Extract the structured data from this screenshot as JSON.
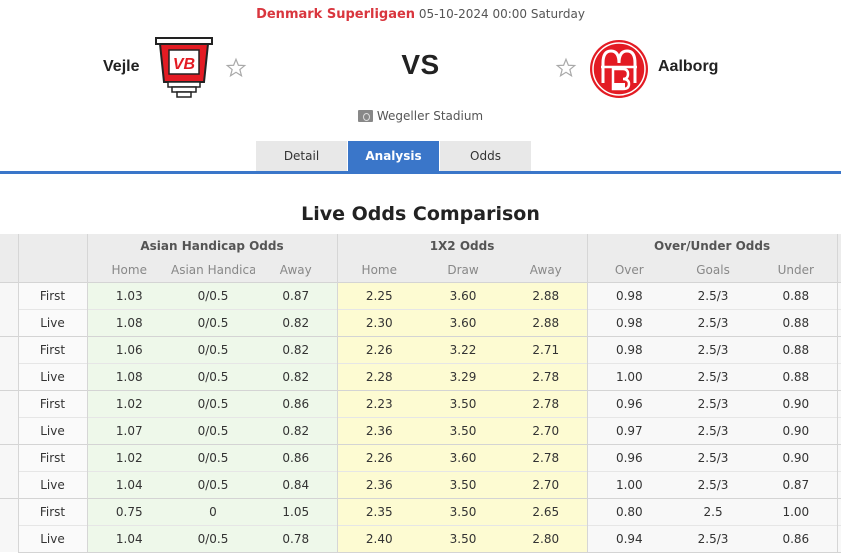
{
  "header": {
    "league": "Denmark Superligaen",
    "datetime": "05-10-2024 00:00 Saturday",
    "vs_label": "VS",
    "stadium": "Wegeller Stadium",
    "stadium_icon": "stadium-icon"
  },
  "home_team": {
    "name": "Vejle",
    "logo": "vejle-crest",
    "favorite_icon": "star-outline-icon"
  },
  "away_team": {
    "name": "Aalborg",
    "logo": "aab-crest",
    "favorite_icon": "star-outline-icon"
  },
  "tabs": [
    {
      "label": "Detail",
      "active": false
    },
    {
      "label": "Analysis",
      "active": true
    },
    {
      "label": "Odds",
      "active": false
    }
  ],
  "colors": {
    "accent": "#3a76c9",
    "league": "#d9363e",
    "ah_bg": "#eef8ea",
    "x12_bg": "#fdfbd2",
    "header_bg": "#ececec"
  },
  "section_title": "Live Odds Comparison",
  "table": {
    "groups": [
      "Asian Handicap Odds",
      "1X2 Odds",
      "Over/Under Odds"
    ],
    "subheaders": {
      "ah": [
        "Home",
        "Asian Handicap",
        "Away"
      ],
      "x12": [
        "Home",
        "Draw",
        "Away"
      ],
      "ou": [
        "Over",
        "Goals",
        "Under"
      ]
    },
    "rows": [
      {
        "type": "First",
        "ah": [
          "1.03",
          "0/0.5",
          "0.87"
        ],
        "x12": [
          "2.25",
          "3.60",
          "2.88"
        ],
        "ou": [
          "0.98",
          "2.5/3",
          "0.88"
        ]
      },
      {
        "type": "Live",
        "ah": [
          "1.08",
          "0/0.5",
          "0.82"
        ],
        "x12": [
          "2.30",
          "3.60",
          "2.88"
        ],
        "ou": [
          "0.98",
          "2.5/3",
          "0.88"
        ]
      },
      {
        "type": "First",
        "ah": [
          "1.06",
          "0/0.5",
          "0.82"
        ],
        "x12": [
          "2.26",
          "3.22",
          "2.71"
        ],
        "ou": [
          "0.98",
          "2.5/3",
          "0.88"
        ]
      },
      {
        "type": "Live",
        "ah": [
          "1.08",
          "0/0.5",
          "0.82"
        ],
        "x12": [
          "2.28",
          "3.29",
          "2.78"
        ],
        "ou": [
          "1.00",
          "2.5/3",
          "0.88"
        ]
      },
      {
        "type": "First",
        "ah": [
          "1.02",
          "0/0.5",
          "0.86"
        ],
        "x12": [
          "2.23",
          "3.50",
          "2.78"
        ],
        "ou": [
          "0.96",
          "2.5/3",
          "0.90"
        ]
      },
      {
        "type": "Live",
        "ah": [
          "1.07",
          "0/0.5",
          "0.82"
        ],
        "x12": [
          "2.36",
          "3.50",
          "2.70"
        ],
        "ou": [
          "0.97",
          "2.5/3",
          "0.90"
        ]
      },
      {
        "type": "First",
        "ah": [
          "1.02",
          "0/0.5",
          "0.86"
        ],
        "x12": [
          "2.26",
          "3.60",
          "2.78"
        ],
        "ou": [
          "0.96",
          "2.5/3",
          "0.90"
        ]
      },
      {
        "type": "Live",
        "ah": [
          "1.04",
          "0/0.5",
          "0.84"
        ],
        "x12": [
          "2.36",
          "3.50",
          "2.70"
        ],
        "ou": [
          "1.00",
          "2.5/3",
          "0.87"
        ]
      },
      {
        "type": "First",
        "ah": [
          "0.75",
          "0",
          "1.05"
        ],
        "x12": [
          "2.35",
          "3.50",
          "2.65"
        ],
        "ou": [
          "0.80",
          "2.5",
          "1.00"
        ]
      },
      {
        "type": "Live",
        "ah": [
          "1.04",
          "0/0.5",
          "0.78"
        ],
        "x12": [
          "2.40",
          "3.50",
          "2.80"
        ],
        "ou": [
          "0.94",
          "2.5/3",
          "0.86"
        ]
      }
    ]
  }
}
